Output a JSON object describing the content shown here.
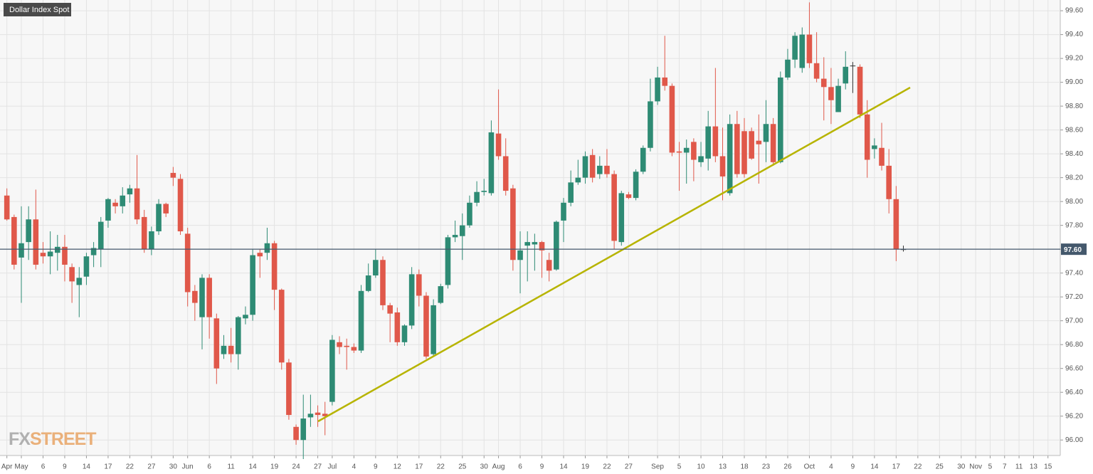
{
  "chart_data": {
    "type": "candlestick",
    "title": "Dollar Index Spot",
    "watermark": [
      "FX",
      "STREET"
    ],
    "up_color": "#2e8b74",
    "down_color": "#e0584a",
    "doji_color": "#333333",
    "grid": true,
    "ylim": [
      95.87,
      99.69
    ],
    "yticks": [
      {
        "value": 96,
        "label": "96.00"
      },
      {
        "value": 96.2,
        "label": "96.20"
      },
      {
        "value": 96.4,
        "label": "96.40"
      },
      {
        "value": 96.6,
        "label": "96.60"
      },
      {
        "value": 96.8,
        "label": "96.80"
      },
      {
        "value": 97,
        "label": "97.00"
      },
      {
        "value": 97.2,
        "label": "97.20"
      },
      {
        "value": 97.4,
        "label": "97.40"
      },
      {
        "value": 97.6,
        "label": "97.60"
      },
      {
        "value": 97.8,
        "label": "97.80"
      },
      {
        "value": 98,
        "label": "98.00"
      },
      {
        "value": 98.2,
        "label": "98.20"
      },
      {
        "value": 98.4,
        "label": "98.40"
      },
      {
        "value": 98.6,
        "label": "98.60"
      },
      {
        "value": 98.8,
        "label": "98.80"
      },
      {
        "value": 99,
        "label": "99.00"
      },
      {
        "value": 99.2,
        "label": "99.20"
      },
      {
        "value": 99.4,
        "label": "99.40"
      },
      {
        "value": 99.6,
        "label": "99.60"
      }
    ],
    "last_price": {
      "value": 97.6,
      "label": "97.60"
    },
    "last_price_color": "#44586c",
    "categories": [
      "Apr",
      null,
      "May",
      null,
      null,
      "6",
      null,
      null,
      "9",
      null,
      null,
      "14",
      null,
      null,
      "17",
      null,
      null,
      "22",
      null,
      null,
      "27",
      null,
      null,
      "30",
      null,
      "Jun",
      null,
      null,
      "6",
      null,
      null,
      "11",
      null,
      null,
      "14",
      null,
      null,
      "19",
      null,
      null,
      "24",
      null,
      null,
      "27",
      null,
      "Jul",
      null,
      null,
      "4",
      null,
      null,
      "9",
      null,
      null,
      "12",
      null,
      null,
      "17",
      null,
      null,
      "22",
      null,
      null,
      "25",
      null,
      null,
      "30",
      null,
      "Aug",
      null,
      null,
      "6",
      null,
      null,
      "9",
      null,
      null,
      "14",
      null,
      null,
      "19",
      null,
      null,
      "22",
      null,
      null,
      "27",
      null,
      null,
      null,
      "Sep",
      null,
      null,
      "5",
      null,
      null,
      "10",
      null,
      null,
      "13",
      null,
      null,
      "18",
      null,
      null,
      "23",
      null,
      null,
      "26",
      null,
      null,
      "Oct",
      null,
      null,
      "4",
      null,
      null,
      "9",
      null,
      null,
      "14",
      null,
      null,
      "17",
      null,
      null,
      "22",
      null,
      null,
      "25",
      null,
      null,
      "30",
      null,
      "Nov",
      null,
      "5",
      null,
      "7",
      null,
      "11",
      null,
      "13",
      null,
      "15"
    ],
    "open": [
      98.05,
      97.87,
      97.53,
      97.66,
      97.85,
      97.57,
      97.54,
      97.57,
      97.62,
      97.45,
      97.3,
      97.37,
      97.55,
      97.6,
      97.84,
      97.99,
      97.96,
      98.06,
      98.11,
      97.87,
      97.6,
      97.75,
      97.98,
      98.24,
      98.19,
      97.73,
      97.25,
      97.03,
      97.36,
      97.02,
      96.72,
      96.79,
      96.72,
      97.02,
      97.05,
      97.57,
      97.57,
      97.65,
      97.26,
      96.65,
      96.11,
      96.0,
      96.19,
      96.23,
      96.22,
      96.32,
      96.82,
      96.79,
      96.78,
      96.75,
      97.25,
      97.38,
      97.51,
      97.13,
      97.07,
      96.82,
      96.96,
      97.39,
      97.21,
      96.72,
      97.15,
      97.3,
      97.7,
      97.71,
      97.8,
      97.99,
      98.08,
      98.07,
      98.57,
      98.38,
      98.11,
      97.51,
      97.63,
      97.64,
      97.66,
      97.51,
      97.43,
      97.84,
      97.99,
      98.16,
      98.2,
      98.39,
      98.23,
      98.3,
      98.23,
      97.66,
      98.06,
      98.03,
      98.25,
      98.45,
      98.84,
      99.04,
      98.97,
      98.42,
      98.41,
      98.5,
      98.33,
      98.36,
      98.63,
      98.38,
      98.07,
      98.65,
      98.59,
      98.59,
      98.51,
      98.5,
      98.65,
      98.33,
      99.04,
      99.19,
      99.12,
      99.4,
      99.16,
      99.03,
      98.96,
      98.75,
      98.99,
      99.14,
      99.13,
      98.73,
      98.44,
      98.45,
      98.3,
      98.02,
      97.6,
      null,
      null,
      null,
      null,
      null,
      null,
      null,
      null,
      null,
      null,
      null,
      null,
      null,
      null,
      null,
      null,
      null,
      null,
      null,
      null
    ],
    "high": [
      98.11,
      97.89,
      97.96,
      97.96,
      98.1,
      97.66,
      97.75,
      97.72,
      97.72,
      97.48,
      97.45,
      97.57,
      97.66,
      97.87,
      98.03,
      98.02,
      98.12,
      98.14,
      98.39,
      97.93,
      97.79,
      98.02,
      97.99,
      98.29,
      98.23,
      97.78,
      97.3,
      97.39,
      97.39,
      97.06,
      96.88,
      96.94,
      97.04,
      97.12,
      97.6,
      97.6,
      97.78,
      97.67,
      97.27,
      96.68,
      96.13,
      96.38,
      96.38,
      96.29,
      96.32,
      96.88,
      96.87,
      96.85,
      96.81,
      97.3,
      97.48,
      97.6,
      97.54,
      97.15,
      97.11,
      96.97,
      97.45,
      97.43,
      97.24,
      97.18,
      97.31,
      97.72,
      97.84,
      97.9,
      98.05,
      98.17,
      98.19,
      98.68,
      98.94,
      98.53,
      98.14,
      97.75,
      97.75,
      97.73,
      97.67,
      97.57,
      97.84,
      98.03,
      98.26,
      98.35,
      98.42,
      98.44,
      98.38,
      98.44,
      98.26,
      98.09,
      98.08,
      98.27,
      98.47,
      99.03,
      99.13,
      99.39,
      98.99,
      98.5,
      98.52,
      98.53,
      98.5,
      98.76,
      99.12,
      98.62,
      98.73,
      98.76,
      98.7,
      98.62,
      98.73,
      98.85,
      98.7,
      99.09,
      99.28,
      99.42,
      99.46,
      99.67,
      99.42,
      99.21,
      99.12,
      99.03,
      99.26,
      99.17,
      99.15,
      98.85,
      98.53,
      98.66,
      98.44,
      98.13,
      97.63,
      null,
      null,
      null,
      null,
      null,
      null,
      null,
      null,
      null,
      null,
      null,
      null,
      null,
      null,
      null,
      null,
      null,
      null,
      null,
      null
    ],
    "low": [
      97.84,
      97.43,
      97.15,
      97.51,
      97.43,
      97.48,
      97.39,
      97.42,
      97.33,
      97.15,
      97.03,
      97.3,
      97.45,
      97.45,
      97.78,
      97.9,
      97.9,
      97.99,
      97.81,
      97.57,
      97.55,
      97.72,
      97.87,
      98.13,
      97.72,
      97.12,
      97.0,
      96.76,
      96.85,
      96.47,
      96.68,
      96.65,
      96.59,
      96.97,
      97.0,
      97.36,
      97.51,
      97.09,
      96.59,
      96.17,
      95.96,
      95.84,
      96.11,
      96.11,
      96.04,
      96.29,
      96.72,
      96.59,
      96.73,
      96.73,
      97.24,
      97.36,
      97.09,
      96.82,
      96.79,
      96.79,
      96.93,
      97.12,
      96.68,
      96.7,
      97.14,
      97.27,
      97.66,
      97.51,
      97.78,
      97.96,
      98.05,
      98.05,
      98.35,
      98.05,
      97.42,
      97.23,
      97.33,
      97.42,
      97.36,
      97.33,
      97.42,
      97.66,
      97.96,
      98.14,
      98.15,
      98.16,
      98.19,
      98.2,
      97.6,
      97.63,
      98.02,
      98.01,
      98.23,
      98.42,
      98.81,
      98.93,
      98.38,
      98.09,
      98.15,
      98.17,
      98.29,
      98.26,
      98.33,
      98.01,
      98.05,
      98.2,
      98.2,
      98.35,
      98.15,
      98.33,
      98.3,
      98.32,
      99.02,
      99.12,
      99.08,
      99.12,
      99.0,
      98.68,
      98.65,
      98.75,
      98.94,
      98.91,
      98.7,
      98.2,
      98.36,
      98.26,
      97.9,
      97.5,
      97.58,
      null,
      null,
      null,
      null,
      null,
      null,
      null,
      null,
      null,
      null,
      null,
      null,
      null,
      null,
      null,
      null,
      null,
      null,
      null,
      null
    ],
    "close": [
      97.85,
      97.47,
      97.65,
      97.85,
      97.47,
      97.54,
      97.58,
      97.62,
      97.47,
      97.33,
      97.36,
      97.54,
      97.61,
      97.83,
      98.02,
      97.96,
      98.05,
      98.11,
      97.85,
      97.6,
      97.75,
      97.98,
      97.9,
      98.2,
      97.75,
      97.24,
      97.15,
      97.36,
      97.03,
      96.6,
      96.79,
      96.72,
      97.03,
      97.05,
      97.55,
      97.54,
      97.65,
      97.26,
      96.65,
      96.21,
      96.0,
      96.18,
      96.22,
      96.21,
      96.2,
      96.84,
      96.78,
      96.78,
      96.75,
      97.25,
      97.38,
      97.51,
      97.13,
      97.06,
      96.82,
      96.96,
      97.39,
      97.21,
      96.7,
      97.13,
      97.29,
      97.7,
      97.72,
      97.8,
      97.99,
      98.08,
      98.09,
      98.58,
      98.38,
      98.09,
      97.51,
      97.59,
      97.66,
      97.66,
      97.59,
      97.42,
      97.83,
      97.99,
      98.16,
      98.2,
      98.38,
      98.2,
      98.3,
      98.23,
      97.67,
      98.07,
      98.03,
      98.25,
      98.45,
      98.84,
      99.04,
      98.97,
      98.41,
      98.41,
      98.45,
      98.35,
      98.38,
      98.63,
      98.38,
      98.21,
      98.65,
      98.23,
      98.23,
      98.36,
      98.48,
      98.65,
      98.33,
      99.04,
      99.19,
      99.39,
      99.4,
      99.16,
      99.03,
      98.96,
      98.85,
      98.97,
      99.13,
      99.14,
      98.73,
      98.35,
      98.47,
      98.3,
      98.02,
      97.6,
      97.6,
      null,
      null,
      null,
      null,
      null,
      null,
      null,
      null,
      null,
      null,
      null,
      null,
      null,
      null,
      null,
      null,
      null,
      null,
      null,
      null
    ]
  }
}
